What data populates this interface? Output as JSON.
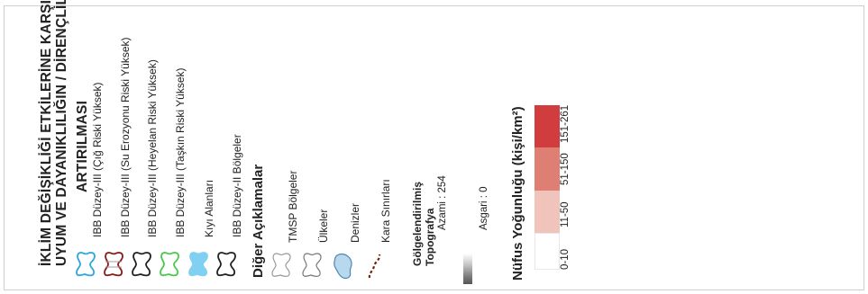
{
  "legend": {
    "title_lines": [
      "İKLİM DEĞİŞİKLİĞİ ETKİLERİNE KARŞI",
      "UYUM VE DAYANIKLILIĞIN / DİRENÇLİLİĞİN",
      "ARTIRILMASI"
    ],
    "zones": [
      {
        "label": "IBB Düzey-III (Çığ Riski Yüksek)",
        "icon": "blob-icon",
        "stroke": "#2ba6de",
        "fill": "none"
      },
      {
        "label": "IBB Düzey-III (Su Erozyonu Riski Yüksek)",
        "icon": "blob-icon",
        "stroke": "#8a1a1a",
        "fill": "none"
      },
      {
        "label": "IBB Düzey-III (Heyelan Riski Yüksek)",
        "icon": "blob-icon",
        "stroke": "#222222",
        "fill": "none"
      },
      {
        "label": "IBB Düzey-III (Taşkın Riski Yüksek)",
        "icon": "blob-icon",
        "stroke": "#49c94c",
        "fill": "none"
      },
      {
        "label": "Kıyı Alanları",
        "icon": "blob-icon",
        "stroke": "#7fd0f2",
        "fill": "#7fd0f2"
      },
      {
        "label": "IBB Düzey-II Bölgeler",
        "icon": "blob-icon",
        "stroke": "#222222",
        "fill": "none"
      }
    ],
    "other_title": "Diğer Açıklamalar",
    "other": [
      {
        "label": "TMSP Bölgeler",
        "icon": "blob-icon",
        "stroke": "#999999",
        "fill": "none"
      },
      {
        "label": "Ülkeler",
        "icon": "blob-icon",
        "stroke": "#777777",
        "fill": "none"
      },
      {
        "label": "Denizler",
        "icon": "sea-icon",
        "stroke": "#4d86b5",
        "fill": "#b8d8ee"
      },
      {
        "label": "Kara Sınırları",
        "icon": "dashed-border-icon",
        "stroke": "#7a1f0a",
        "fill": "none"
      }
    ],
    "topography": {
      "title_lines": [
        "Gölgelendirilmiş",
        "Topografya"
      ],
      "max_label": "Azami : 254",
      "min_label": "Asgari : 0"
    },
    "population": {
      "title": "Nüfus Yoğunluğu (kişi/km²)",
      "classes": [
        {
          "label": "0-10",
          "color": "#ffffff"
        },
        {
          "label": "11-50",
          "color": "#f0c4ba"
        },
        {
          "label": "51-150",
          "color": "#df7e72"
        },
        {
          "label": "151-261",
          "color": "#d13d3e"
        }
      ]
    }
  }
}
